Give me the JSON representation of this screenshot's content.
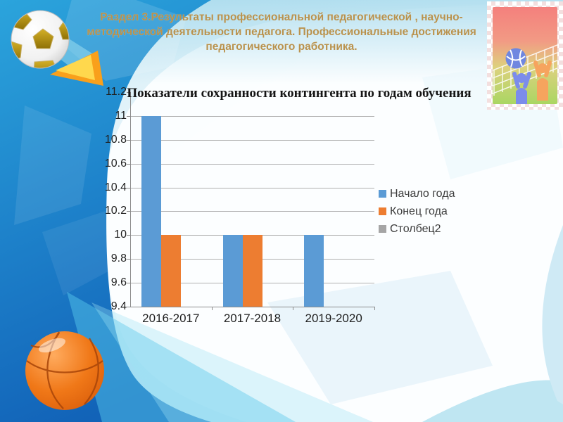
{
  "slide": {
    "header_title": "Раздел 3.Результаты профессиональной педагогической , научно-методической деятельности педагога. Профессиональные достижения педагогического работника.",
    "header_color": "#b9924d"
  },
  "decorations": {
    "top_left": "soccer-ball",
    "bottom_left": "basketball",
    "top_right": "volleyball-players-clipart"
  },
  "colors": {
    "slide_blue_light": "#2ba4dc",
    "slide_blue_dark": "#1263b8",
    "bar_blue": "#5b9bd5",
    "bar_orange": "#ed7d31",
    "bar_gray": "#a5a5a5"
  },
  "chart_data": {
    "type": "bar",
    "title": "Показатели сохранности контингента по годам обучения",
    "categories": [
      "2016-2017",
      "2017-2018",
      "2019-2020"
    ],
    "series": [
      {
        "name": "Начало года",
        "color": "#5b9bd5",
        "values": [
          11,
          10,
          10
        ]
      },
      {
        "name": "Конец года",
        "color": "#ed7d31",
        "values": [
          10,
          10,
          null
        ]
      },
      {
        "name": "Столбец2",
        "color": "#a5a5a5",
        "values": [
          null,
          null,
          null
        ]
      }
    ],
    "ylim": [
      9.4,
      11.2
    ],
    "ytick_step": 0.2,
    "yticks": [
      9.4,
      9.6,
      9.8,
      10,
      10.2,
      10.4,
      10.6,
      10.8,
      11,
      11.2
    ],
    "xlabel": "",
    "ylabel": "",
    "grid": true,
    "legend_position": "right"
  }
}
